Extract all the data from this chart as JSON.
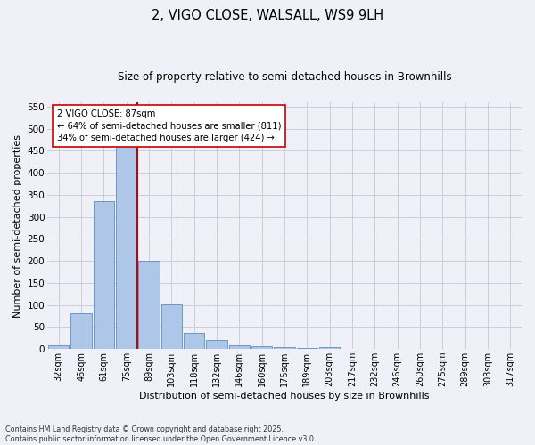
{
  "title_line1": "2, VIGO CLOSE, WALSALL, WS9 9LH",
  "title_line2": "Size of property relative to semi-detached houses in Brownhills",
  "xlabel": "Distribution of semi-detached houses by size in Brownhills",
  "ylabel": "Number of semi-detached properties",
  "bins": [
    "32sqm",
    "46sqm",
    "61sqm",
    "75sqm",
    "89sqm",
    "103sqm",
    "118sqm",
    "132sqm",
    "146sqm",
    "160sqm",
    "175sqm",
    "189sqm",
    "203sqm",
    "217sqm",
    "232sqm",
    "246sqm",
    "260sqm",
    "275sqm",
    "289sqm",
    "303sqm",
    "317sqm"
  ],
  "values": [
    8,
    82,
    335,
    460,
    200,
    102,
    37,
    20,
    9,
    7,
    5,
    2,
    5,
    0,
    0,
    0,
    0,
    0,
    0,
    0,
    0
  ],
  "bar_color": "#aec6e8",
  "bar_edge_color": "#5a8fc2",
  "vline_color": "#cc0000",
  "annotation_text": "2 VIGO CLOSE: 87sqm\n← 64% of semi-detached houses are smaller (811)\n34% of semi-detached houses are larger (424) →",
  "annotation_box_color": "#ffffff",
  "annotation_box_edge": "#cc0000",
  "ylim": [
    0,
    560
  ],
  "yticks": [
    0,
    50,
    100,
    150,
    200,
    250,
    300,
    350,
    400,
    450,
    500,
    550
  ],
  "footer_line1": "Contains HM Land Registry data © Crown copyright and database right 2025.",
  "footer_line2": "Contains public sector information licensed under the Open Government Licence v3.0.",
  "bg_color": "#f0f0f8",
  "grid_color": "#ccccdd"
}
